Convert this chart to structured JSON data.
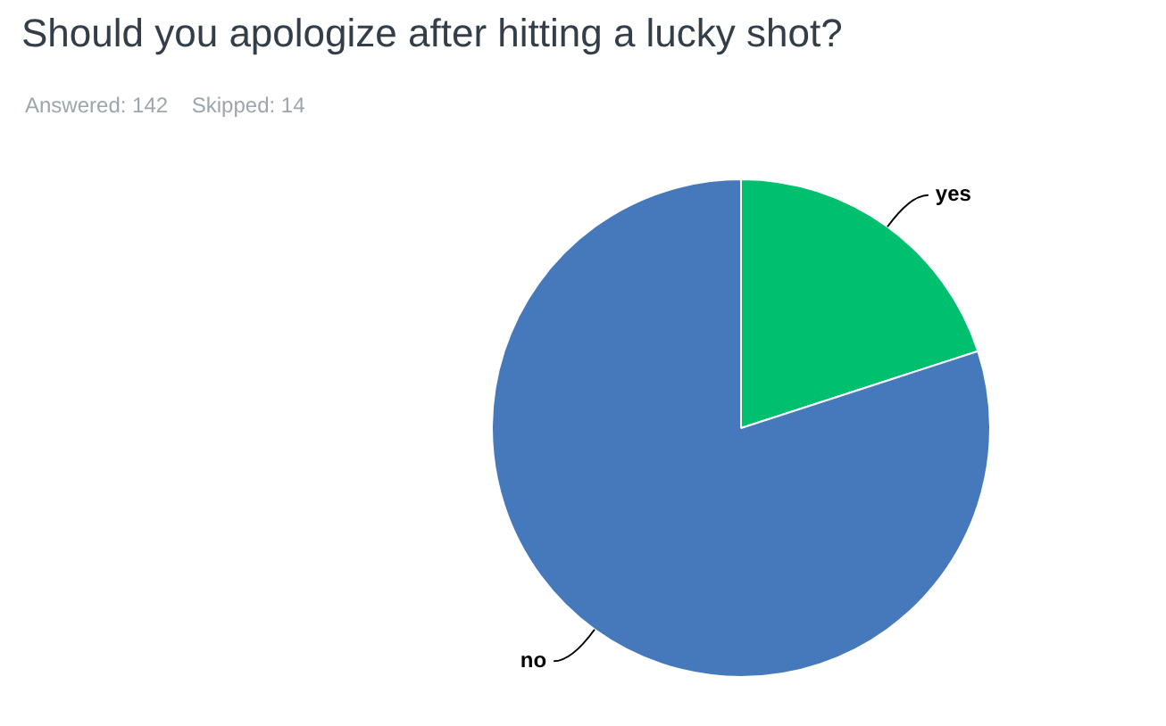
{
  "chart_data": {
    "type": "pie",
    "title": "Should you apologize after hitting a lucky shot?",
    "subtitle": "Answered: 142    Skipped: 14",
    "categories": [
      "yes",
      "no"
    ],
    "values": [
      20,
      80
    ],
    "colors": [
      "#00bf6f",
      "#4679bb"
    ],
    "legend": false
  }
}
